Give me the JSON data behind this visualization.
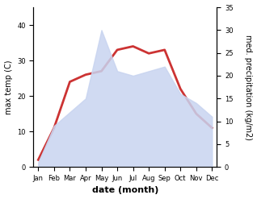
{
  "months": [
    "Jan",
    "Feb",
    "Mar",
    "Apr",
    "May",
    "Jun",
    "Jul",
    "Aug",
    "Sep",
    "Oct",
    "Nov",
    "Dec"
  ],
  "month_indices": [
    0,
    1,
    2,
    3,
    4,
    5,
    6,
    7,
    8,
    9,
    10,
    11
  ],
  "temperature": [
    2,
    11,
    24,
    26,
    27,
    33,
    34,
    32,
    33,
    22,
    15,
    11
  ],
  "precipitation": [
    1,
    9,
    12,
    15,
    30,
    21,
    20,
    21,
    22,
    16,
    14,
    11
  ],
  "temp_color": "#cc3333",
  "precip_fill_color": "#c8d4f0",
  "precip_fill_alpha": 0.85,
  "temp_ylim": [
    0,
    45
  ],
  "precip_ylim": [
    0,
    35
  ],
  "temp_yticks": [
    0,
    10,
    20,
    30,
    40
  ],
  "precip_yticks": [
    0,
    5,
    10,
    15,
    20,
    25,
    30,
    35
  ],
  "xlabel": "date (month)",
  "ylabel_left": "max temp (C)",
  "ylabel_right": "med. precipitation (kg/m2)",
  "linewidth": 2.0,
  "font_size_axis_label": 7,
  "font_size_ticks": 6,
  "xlabel_fontsize": 8
}
